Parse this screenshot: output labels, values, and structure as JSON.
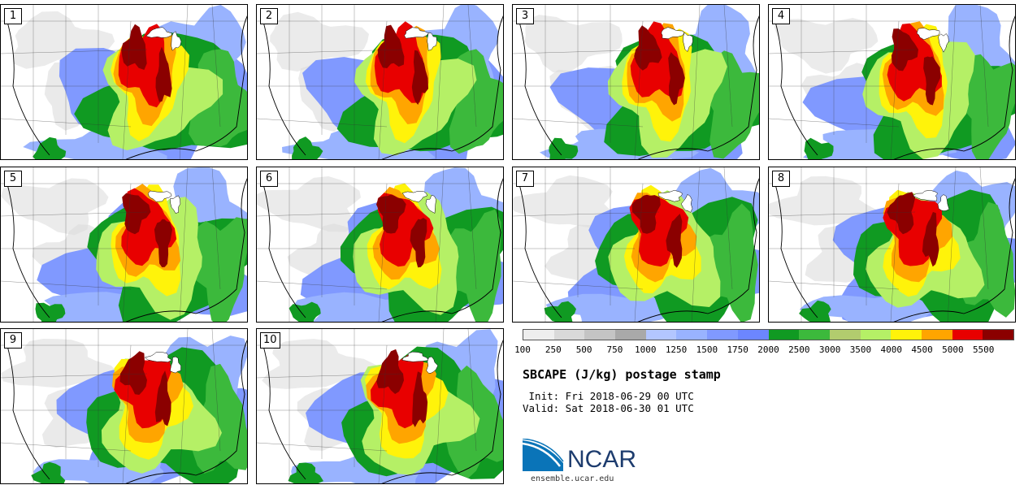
{
  "panels": [
    {
      "label": "1"
    },
    {
      "label": "2"
    },
    {
      "label": "3"
    },
    {
      "label": "4"
    },
    {
      "label": "5"
    },
    {
      "label": "6"
    },
    {
      "label": "7"
    },
    {
      "label": "8"
    },
    {
      "label": "9"
    },
    {
      "label": "10"
    }
  ],
  "legend": {
    "colors": [
      "#eeeeee",
      "#d9d9d9",
      "#c4c4c4",
      "#a9a9a9",
      "#b3c6ff",
      "#99b3ff",
      "#8099ff",
      "#6c86ff",
      "#109a22",
      "#3cb93c",
      "#b2cc6e",
      "#b5f066",
      "#fff30a",
      "#ffa500",
      "#e80000",
      "#8b0000"
    ],
    "labels": [
      "100",
      "250",
      "500",
      "750",
      "1000",
      "1250",
      "1500",
      "1750",
      "2000",
      "2500",
      "3000",
      "3500",
      "4000",
      "4500",
      "5000",
      "5500"
    ]
  },
  "title": "SBCAPE (J/kg) postage stamp",
  "init": " Init: Fri 2018-06-29 00 UTC",
  "valid": "Valid: Sat 2018-06-30 01 UTC",
  "logo": {
    "text": "NCAR",
    "url": "ensemble.ucar.edu"
  }
}
